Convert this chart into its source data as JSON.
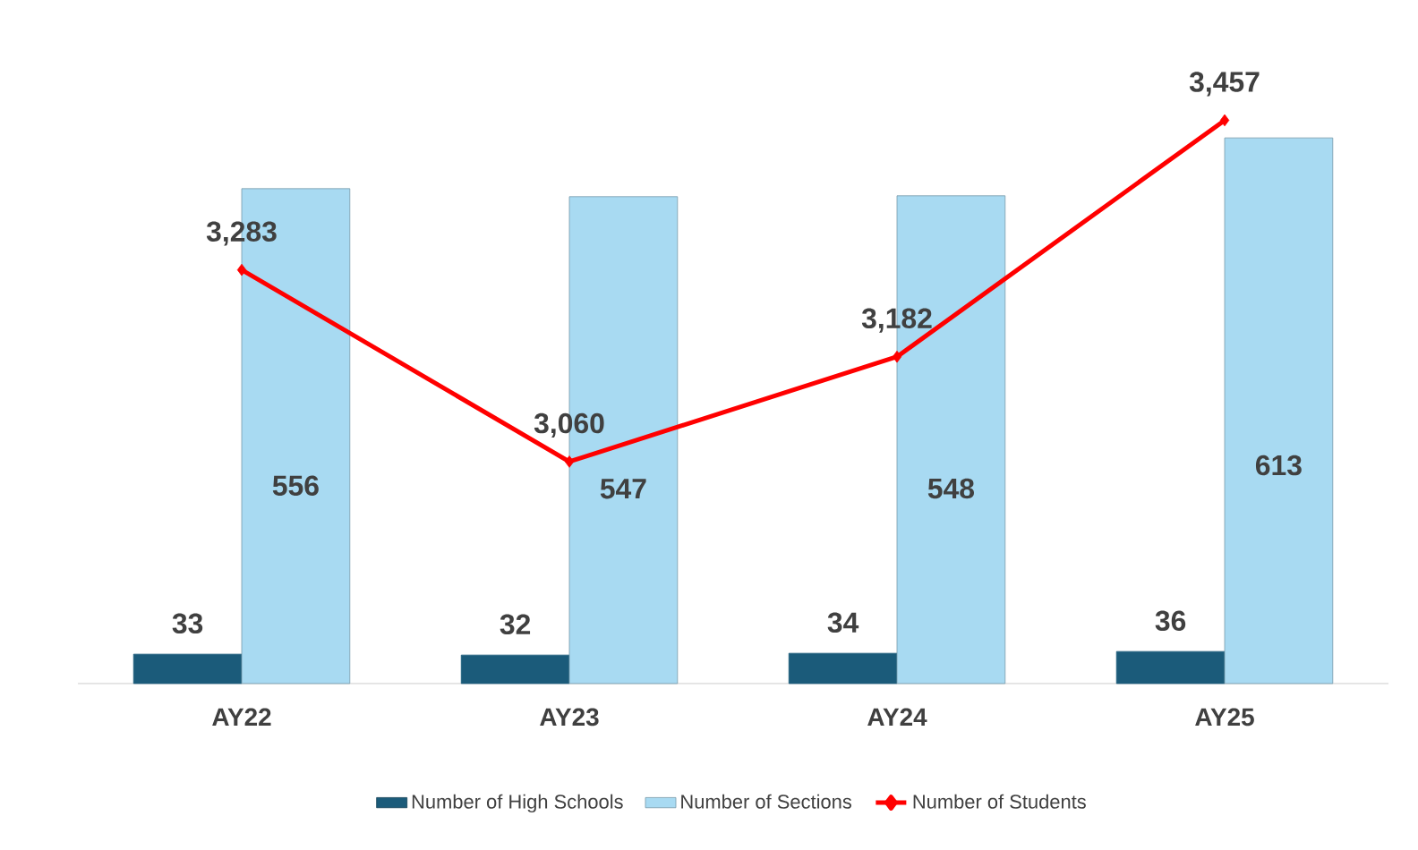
{
  "chart_data": {
    "type": "bar",
    "categories": [
      "AY22",
      "AY23",
      "AY24",
      "AY25"
    ],
    "series": [
      {
        "name": "Number of High Schools",
        "color": "#1b5b7a",
        "values": [
          33,
          32,
          34,
          36
        ],
        "value_labels": [
          "33",
          "32",
          "34",
          "36"
        ]
      },
      {
        "name": "Number of Sections",
        "color": "#a8daf2",
        "values": [
          556,
          547,
          548,
          613
        ],
        "value_labels": [
          "556",
          "547",
          "548",
          "613"
        ]
      },
      {
        "name": "Number of Students",
        "type": "line",
        "axis": "y2",
        "color": "#ff0000",
        "marker": "diamond",
        "values": [
          3283,
          3060,
          3182,
          3457
        ],
        "value_labels": [
          "3,283",
          "3,060",
          "3,182",
          "3,457"
        ]
      }
    ],
    "legend": "bottom"
  }
}
